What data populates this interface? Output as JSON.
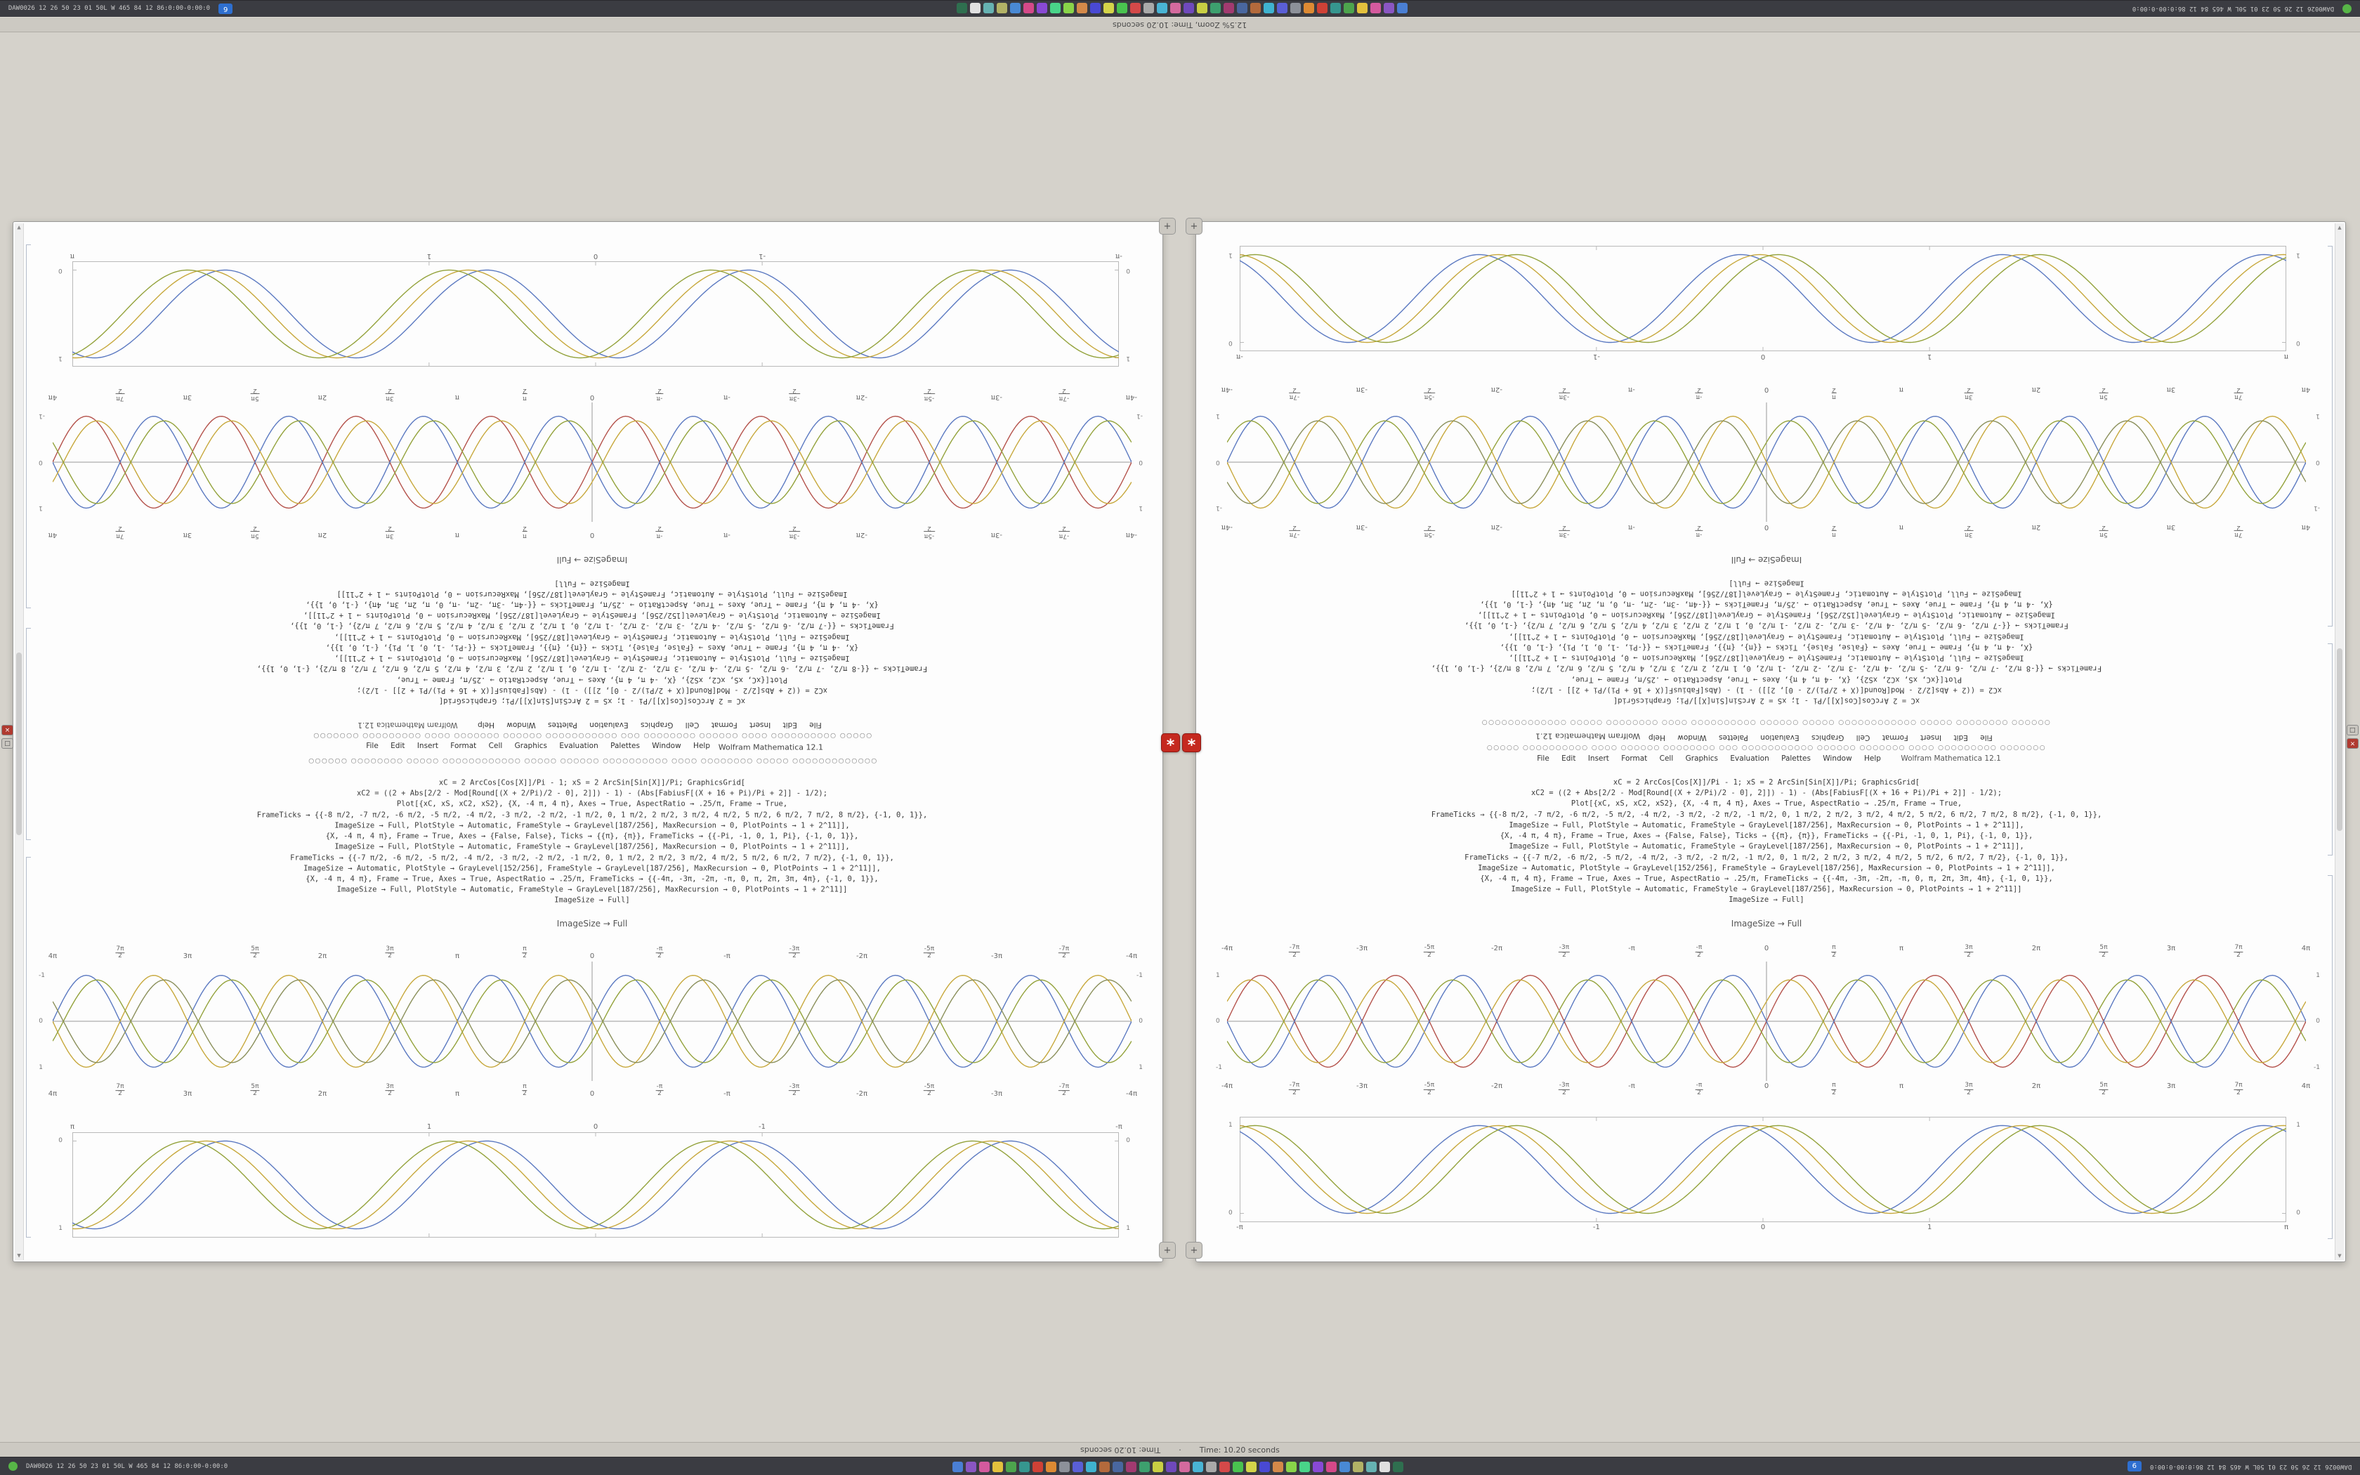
{
  "app": {
    "title": "Wolfram Mathematica 12.1"
  },
  "status": {
    "zoom_text": "12.5% Zoom,  Time: 10.20 seconds",
    "time_text": "Time: 10.20 seconds",
    "separator": "·"
  },
  "taskbar": {
    "stats_left": "DAW0026 12 26 50 23 01 50L W 465 84 12  86:0:00-0:00:0",
    "tray_badge": "6",
    "icons": [
      {
        "name": "app-icon-01",
        "color": "#4a7fd4"
      },
      {
        "name": "app-icon-02",
        "color": "#8a56c2"
      },
      {
        "name": "app-icon-03",
        "color": "#d45a9e"
      },
      {
        "name": "app-icon-04",
        "color": "#e3c13d"
      },
      {
        "name": "app-icon-05",
        "color": "#4da44d"
      },
      {
        "name": "app-icon-06",
        "color": "#36968f"
      },
      {
        "name": "app-icon-07",
        "color": "#cf4136"
      },
      {
        "name": "app-icon-08",
        "color": "#dd8a33"
      },
      {
        "name": "app-icon-09",
        "color": "#8d9199"
      },
      {
        "name": "app-icon-10",
        "color": "#5a5fd6"
      },
      {
        "name": "app-icon-11",
        "color": "#3fb3d0"
      },
      {
        "name": "app-icon-12",
        "color": "#b36a3c"
      },
      {
        "name": "app-icon-13",
        "color": "#49679f"
      },
      {
        "name": "app-icon-14",
        "color": "#a23a70"
      },
      {
        "name": "app-icon-15",
        "color": "#3da06e"
      },
      {
        "name": "app-icon-16",
        "color": "#c9cf43"
      },
      {
        "name": "app-icon-17",
        "color": "#6f49bb"
      },
      {
        "name": "app-icon-18",
        "color": "#d46a9e"
      },
      {
        "name": "app-icon-19",
        "color": "#49b4d4"
      },
      {
        "name": "app-icon-20",
        "color": "#a9a9a9"
      },
      {
        "name": "app-icon-21",
        "color": "#d44949"
      },
      {
        "name": "app-icon-22",
        "color": "#49c24f"
      },
      {
        "name": "app-icon-23",
        "color": "#d4d449"
      },
      {
        "name": "app-icon-24",
        "color": "#4949d4"
      },
      {
        "name": "app-icon-25",
        "color": "#d48949"
      },
      {
        "name": "app-icon-26",
        "color": "#89d449"
      },
      {
        "name": "app-icon-27",
        "color": "#49d489"
      },
      {
        "name": "app-icon-28",
        "color": "#8949d4"
      },
      {
        "name": "app-icon-29",
        "color": "#d44989"
      },
      {
        "name": "app-icon-30",
        "color": "#4989d4"
      },
      {
        "name": "app-icon-31",
        "color": "#b2b266"
      },
      {
        "name": "app-icon-32",
        "color": "#66b2b2"
      },
      {
        "name": "app-icon-33",
        "color": "#e0e0e0"
      },
      {
        "name": "app-icon-34",
        "color": "#2f6f4f"
      }
    ]
  },
  "glyphs": {
    "close": "×",
    "box": "□",
    "spikey": "*",
    "corner": "+",
    "scroll_up": "▲",
    "scroll_down": "▼"
  },
  "menubar": {
    "items": [
      "File",
      "Edit",
      "Insert",
      "Format",
      "Cell",
      "Graphics",
      "Evaluation",
      "Palettes",
      "Window",
      "Help"
    ]
  },
  "notebook": {
    "caption_imagesize": "ImageSize → Full",
    "glyph_row_a": "○○○○○○○○○○○○○ ○○○○○ ○○○○○○○○ ○○○○ ○○○○○○○○○○ ○○○○○○ ○○○○○ ○○○○○○○○○○○○ ○○○○○ ○○○○○○○○ ○○○○○○",
    "glyph_row_b": "○○○○○ ○○○○○○○○○○ ○○○○ ○○○○○○ ○○○○○○○○ ○○○ ○○○○○○○○○○○ ○○○○○○ ○○○○○○○ ○○○○ ○○○○○○○○○ ○○○○○○○",
    "code_lines": [
      "xC = 2 ArcCos[Cos[X]]/Pi - 1;   xS = 2 ArcSin[Sin[X]]/Pi;   GraphicsGrid[",
      "xC2 = ((2 + Abs[2/2 - Mod[Round[(X + 2/Pi)/2 - 0], 2]]) - 1) - (Abs[FabiusF[(X + 16 + Pi)/Pi + 2]] - 1/2);",
      "Plot[{xC, xS, xC2, xS2}, {X, -4 π, 4 π}, Axes → True, AspectRatio → .25/π, Frame → True,",
      "FrameTicks → {{-8 π/2, -7 π/2, -6 π/2, -5 π/2, -4 π/2, -3 π/2, -2 π/2, -1 π/2, 0, 1 π/2, 2 π/2, 3 π/2, 4 π/2, 5 π/2, 6 π/2, 7 π/2, 8 π/2}, {-1, 0, 1}},",
      "ImageSize → Full, PlotStyle → Automatic, FrameStyle → GrayLevel[187/256], MaxRecursion → 0, PlotPoints → 1 + 2^11]],",
      "{X, -4 π, 4 π}, Frame → True, Axes → {False, False}, Ticks → {{π}, {π}}, FrameTicks → {{-Pi, -1, 0, 1, Pi}, {-1, 0, 1}},",
      "ImageSize → Full, PlotStyle → Automatic, FrameStyle → GrayLevel[187/256], MaxRecursion → 0, PlotPoints → 1 + 2^11]],",
      "FrameTicks → {{-7 π/2, -6 π/2, -5 π/2, -4 π/2, -3 π/2, -2 π/2, -1 π/2, 0, 1 π/2, 2 π/2, 3 π/2, 4 π/2, 5 π/2, 6 π/2, 7 π/2}, {-1, 0, 1}},",
      "ImageSize → Automatic, PlotStyle → GrayLevel[152/256], FrameStyle → GrayLevel[187/256], MaxRecursion → 0, PlotPoints → 1 + 2^11]],",
      "{X, -4 π, 4 π}, Frame → True, Axes → True, AspectRatio → .25/π, FrameTicks → {{-4π, -3π, -2π, -π, 0, π, 2π, 3π, 4π}, {-1, 0, 1}},",
      "ImageSize → Full, PlotStyle → Automatic, FrameStyle → GrayLevel[187/256], MaxRecursion → 0, PlotPoints → 1 + 2^11]]",
      "ImageSize → Full]"
    ]
  },
  "chart_data": {
    "framed_top": {
      "type": "line",
      "frame": true,
      "axis": false,
      "x_range": [
        -3.1416,
        3.1416
      ],
      "y_range": [
        -0.1,
        1.1
      ],
      "labels_rotated": true,
      "xticks": [
        {
          "v": -3.1416,
          "label": "-π"
        },
        {
          "v": -1,
          "label": "-1"
        },
        {
          "v": 0,
          "label": "0"
        },
        {
          "v": 1,
          "label": "1"
        },
        {
          "v": 3.1416,
          "label": "π"
        }
      ],
      "yticks": [
        {
          "v": 1,
          "label": "1"
        },
        {
          "v": 0,
          "label": "0"
        }
      ],
      "series": [
        {
          "name": "curve-1",
          "color": "#5B79C1",
          "amp": 0.5,
          "freq": 4,
          "phase": 2.1,
          "offset": 0.5
        },
        {
          "name": "curve-2",
          "color": "#C7A83C",
          "amp": 0.5,
          "freq": 4,
          "phase": 1.65,
          "offset": 0.5
        },
        {
          "name": "curve-3",
          "color": "#93A23B",
          "amp": 0.5,
          "freq": 4,
          "phase": 1.2,
          "offset": 0.5
        }
      ]
    },
    "axis_upper": {
      "type": "line",
      "frame": false,
      "axis": true,
      "x_range": [
        -12.566,
        12.566
      ],
      "y_range": [
        -1.3,
        1.3
      ],
      "labels_rotated": true,
      "labels_top": true,
      "xticks": [
        {
          "v": -12.566,
          "label": "-4π"
        },
        {
          "v": -10.996,
          "label": "-7π/2"
        },
        {
          "v": -9.425,
          "label": "-3π"
        },
        {
          "v": -7.854,
          "label": "-5π/2"
        },
        {
          "v": -6.283,
          "label": "-2π"
        },
        {
          "v": -4.712,
          "label": "-3π/2"
        },
        {
          "v": -3.142,
          "label": "-π"
        },
        {
          "v": -1.571,
          "label": "-π/2"
        },
        {
          "v": 0,
          "label": "0"
        },
        {
          "v": 1.571,
          "label": "π/2"
        },
        {
          "v": 3.142,
          "label": "π"
        },
        {
          "v": 4.712,
          "label": "3π/2"
        },
        {
          "v": 6.283,
          "label": "2π"
        },
        {
          "v": 7.854,
          "label": "5π/2"
        },
        {
          "v": 9.425,
          "label": "3π"
        },
        {
          "v": 10.996,
          "label": "7π/2"
        },
        {
          "v": 12.566,
          "label": "4π"
        }
      ],
      "yticks": [
        {
          "v": 1,
          "label": "1"
        },
        {
          "v": 0,
          "label": "0"
        },
        {
          "v": -1,
          "label": "-1"
        }
      ],
      "series": [
        {
          "name": "s1",
          "color": "#5B79C1",
          "amp": 1,
          "freq": 2,
          "phase": 0,
          "offset": 0
        },
        {
          "name": "s2",
          "color": "#C7A83C",
          "amp": 1,
          "freq": 2,
          "phase": 3.1416,
          "offset": 0
        },
        {
          "name": "s3",
          "color": "#93A23B",
          "amp": 0.9,
          "freq": 2,
          "phase": 0.5,
          "offset": 0
        },
        {
          "name": "s4",
          "color": "#8a8f5a",
          "amp": 0.9,
          "freq": 2,
          "phase": 3.64,
          "offset": 0
        }
      ]
    },
    "axis_lower": {
      "type": "line",
      "frame": false,
      "axis": true,
      "x_range": [
        -12.566,
        12.566
      ],
      "y_range": [
        -1.3,
        1.3
      ],
      "labels_rotated": false,
      "labels_top": true,
      "xticks": [
        {
          "v": -12.566,
          "label": "-4π"
        },
        {
          "v": -10.996,
          "label": "-7π/2"
        },
        {
          "v": -9.425,
          "label": "-3π"
        },
        {
          "v": -7.854,
          "label": "-5π/2"
        },
        {
          "v": -6.283,
          "label": "-2π"
        },
        {
          "v": -4.712,
          "label": "-3π/2"
        },
        {
          "v": -3.142,
          "label": "-π"
        },
        {
          "v": -1.571,
          "label": "-π/2"
        },
        {
          "v": 0,
          "label": "0"
        },
        {
          "v": 1.571,
          "label": "π/2"
        },
        {
          "v": 3.142,
          "label": "π"
        },
        {
          "v": 4.712,
          "label": "3π/2"
        },
        {
          "v": 6.283,
          "label": "2π"
        },
        {
          "v": 7.854,
          "label": "5π/2"
        },
        {
          "v": 9.425,
          "label": "3π"
        },
        {
          "v": 10.996,
          "label": "7π/2"
        },
        {
          "v": 12.566,
          "label": "4π"
        }
      ],
      "yticks": [
        {
          "v": 1,
          "label": "1"
        },
        {
          "v": 0,
          "label": "0"
        },
        {
          "v": -1,
          "label": "-1"
        }
      ],
      "series": [
        {
          "name": "s1",
          "color": "#B4524B",
          "amp": 1,
          "freq": 2,
          "phase": 0,
          "offset": 0
        },
        {
          "name": "s2",
          "color": "#5B79C1",
          "amp": 1,
          "freq": 2,
          "phase": 3.1416,
          "offset": 0
        },
        {
          "name": "s3",
          "color": "#C7A83C",
          "amp": 0.9,
          "freq": 2,
          "phase": 0.5,
          "offset": 0
        },
        {
          "name": "s4",
          "color": "#93A23B",
          "amp": 0.9,
          "freq": 2,
          "phase": 3.64,
          "offset": 0
        }
      ]
    },
    "framed_bottom": {
      "type": "line",
      "frame": true,
      "axis": false,
      "x_range": [
        -3.1416,
        3.1416
      ],
      "y_range": [
        -0.1,
        1.1
      ],
      "labels_rotated": false,
      "xticks": [
        {
          "v": -3.1416,
          "label": "-π"
        },
        {
          "v": -1,
          "label": "-1"
        },
        {
          "v": 0,
          "label": "0"
        },
        {
          "v": 1,
          "label": "1"
        },
        {
          "v": 3.1416,
          "label": "π"
        }
      ],
      "yticks": [
        {
          "v": 1,
          "label": "1"
        },
        {
          "v": 0,
          "label": "0"
        }
      ],
      "series": [
        {
          "name": "curve-1",
          "color": "#5B79C1",
          "amp": 0.5,
          "freq": 4,
          "phase": 2.1,
          "offset": 0.5
        },
        {
          "name": "curve-2",
          "color": "#C7A83C",
          "amp": 0.5,
          "freq": 4,
          "phase": 1.65,
          "offset": 0.5
        },
        {
          "name": "curve-3",
          "color": "#93A23B",
          "amp": 0.5,
          "freq": 4,
          "phase": 1.2,
          "offset": 0.5
        }
      ]
    }
  }
}
